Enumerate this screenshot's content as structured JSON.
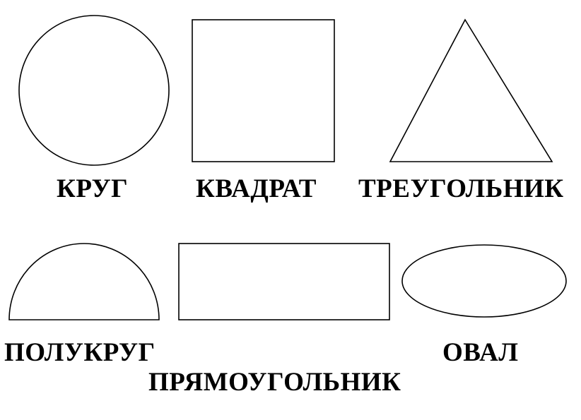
{
  "style": {
    "stroke_color": "#000000",
    "background": "#ffffff"
  },
  "shapes": {
    "circle": "КРУГ",
    "square": "КВАДРАТ",
    "triangle": "ТРЕУГОЛЬНИК",
    "semicircle": "ПОЛУКРУГ",
    "rectangle": "ПРЯМОУГОЛЬНИК",
    "oval": "ОВАЛ"
  }
}
